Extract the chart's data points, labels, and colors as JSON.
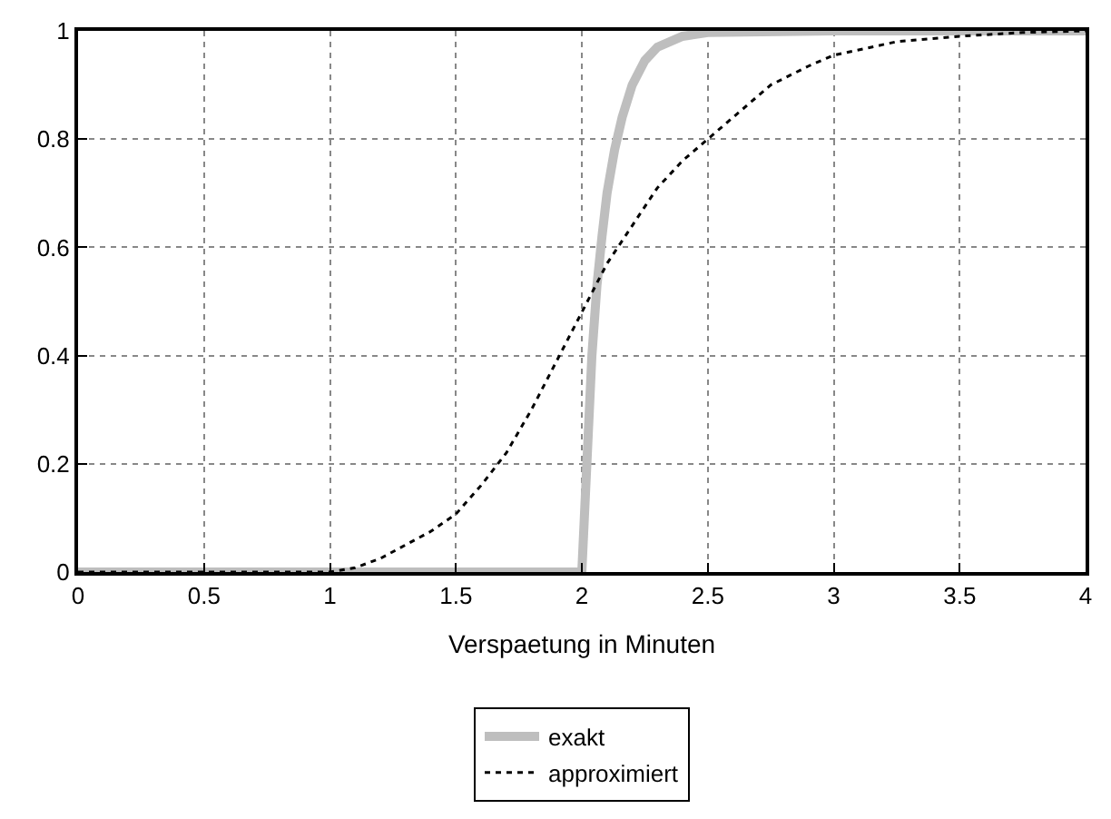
{
  "chart_data": {
    "type": "line",
    "xlabel": "Verspaetung in Minuten",
    "xlim": [
      0,
      4
    ],
    "xticks": [
      0,
      0.5,
      1,
      1.5,
      2,
      2.5,
      3,
      3.5,
      4
    ],
    "ylim": [
      0,
      1
    ],
    "yticks": [
      0,
      0.2,
      0.4,
      0.6,
      0.8,
      1
    ],
    "grid": true,
    "legend": "bottom",
    "series": [
      {
        "name": "exakt",
        "color": "#bebebe",
        "line_style": "solid",
        "x": [
          0,
          1,
          1.99,
          2.0,
          2.02,
          2.04,
          2.06,
          2.08,
          2.1,
          2.13,
          2.16,
          2.2,
          2.25,
          2.3,
          2.4,
          2.5,
          3,
          4
        ],
        "values": [
          0,
          0,
          0,
          0,
          0.2,
          0.4,
          0.53,
          0.62,
          0.7,
          0.78,
          0.84,
          0.9,
          0.945,
          0.97,
          0.99,
          0.997,
          1,
          1
        ]
      },
      {
        "name": "approximiert",
        "color": "#000000",
        "line_style": "dotted",
        "x": [
          0,
          1,
          1.1,
          1.2,
          1.3,
          1.4,
          1.5,
          1.6,
          1.7,
          1.8,
          1.9,
          2,
          2.1,
          2.2,
          2.3,
          2.4,
          2.5,
          2.6,
          2.75,
          2.9,
          3,
          3.25,
          3.5,
          3.75,
          4
        ],
        "values": [
          0,
          0,
          0.008,
          0.025,
          0.05,
          0.075,
          0.107,
          0.16,
          0.22,
          0.3,
          0.39,
          0.48,
          0.57,
          0.64,
          0.71,
          0.76,
          0.8,
          0.84,
          0.9,
          0.935,
          0.955,
          0.98,
          0.99,
          0.997,
          1
        ]
      }
    ]
  }
}
